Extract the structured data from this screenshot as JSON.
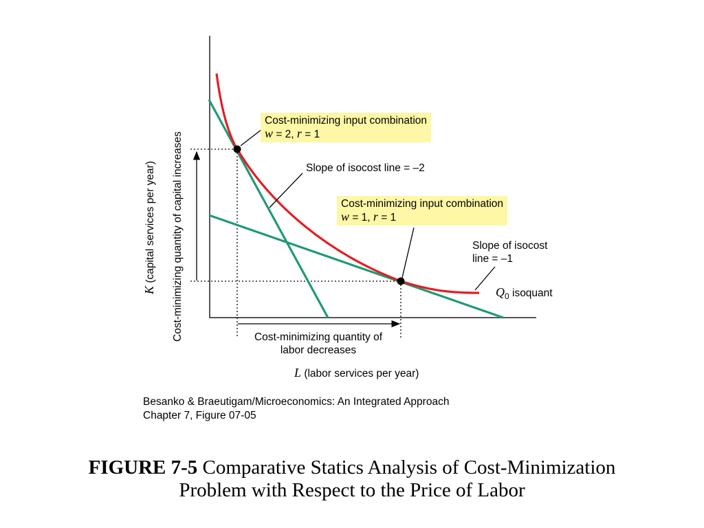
{
  "diagram": {
    "callout_w2": {
      "line1": "Cost-minimizing input combination",
      "line2_w": "w",
      "line2_w_value": " = 2, ",
      "line2_r": "r",
      "line2_r_value": " = 1"
    },
    "callout_w1": {
      "line1": "Cost-minimizing input combination",
      "line2_w": "w",
      "line2_w_value": " = 1, ",
      "line2_r": "r",
      "line2_r_value": " = 1"
    },
    "slope_minus2": "Slope of isocost line = –2",
    "slope_minus1": {
      "line1": "Slope of isocost",
      "line2": "line = –1"
    },
    "isoquant_label": {
      "q": "Q",
      "sub": "0",
      "text": " isoquant"
    },
    "labor_decreases": {
      "line1": "Cost-minimizing quantity of",
      "line2": "labor decreases"
    },
    "capital_increases": "Cost-minimizing quantity of capital increases",
    "y_axis": {
      "k": "K",
      "text": " (capital services per year)"
    },
    "x_axis": {
      "l": "L",
      "text": " (labor services per year)"
    },
    "colors": {
      "isoquant": "#e31e24",
      "isocost": "#1f9a74",
      "callout_bg": "#fdf7a6"
    }
  },
  "credit": {
    "line1": "Besanko & Braeutigam/Microeconomics: An Integrated Approach",
    "line2": "Chapter 7, Figure 07-05"
  },
  "caption": {
    "bold": "FIGURE 7-5",
    "line1_rest": " Comparative Statics Analysis of Cost-Minimization",
    "line2": "Problem with Respect to the Price of Labor"
  }
}
